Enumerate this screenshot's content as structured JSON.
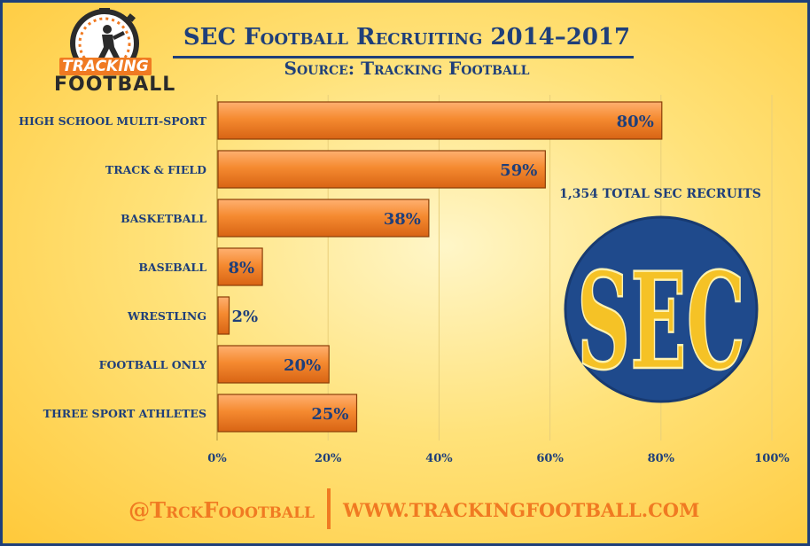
{
  "header": {
    "title": "SEC Football Recruiting 2014–2017",
    "subtitle": "Source: Tracking Football"
  },
  "logo": {
    "line1": "TRACKING",
    "line2": "FOOTBALL",
    "icon": "football-player-stopwatch-icon"
  },
  "side_note": {
    "total_recruits": "1,354 TOTAL SEC RECRUITS",
    "logo_text": "SEC"
  },
  "footer": {
    "handle": "@TrckFoootball",
    "url": "WWW.TRACKINGFOOTBALL.COM"
  },
  "colors": {
    "navy": "#1f3f7a",
    "orange": "#f07a22",
    "sec_gold": "#f5c226"
  },
  "chart_data": {
    "type": "bar",
    "orientation": "horizontal",
    "categories": [
      "HIGH SCHOOL MULTI-SPORT",
      "TRACK & FIELD",
      "BASKETBALL",
      "BASEBALL",
      "WRESTLING",
      "FOOTBALL ONLY",
      "THREE SPORT ATHLETES"
    ],
    "values": [
      80,
      59,
      38,
      8,
      2,
      20,
      25
    ],
    "data_labels": [
      "80%",
      "59%",
      "38%",
      "8%",
      "2%",
      "20%",
      "25%"
    ],
    "xlim": [
      0,
      100
    ],
    "x_ticks": [
      0,
      20,
      40,
      60,
      80,
      100
    ],
    "x_tick_labels": [
      "0%",
      "20%",
      "40%",
      "60%",
      "80%",
      "100%"
    ],
    "grid": true,
    "bar_color": "#f07a22"
  }
}
